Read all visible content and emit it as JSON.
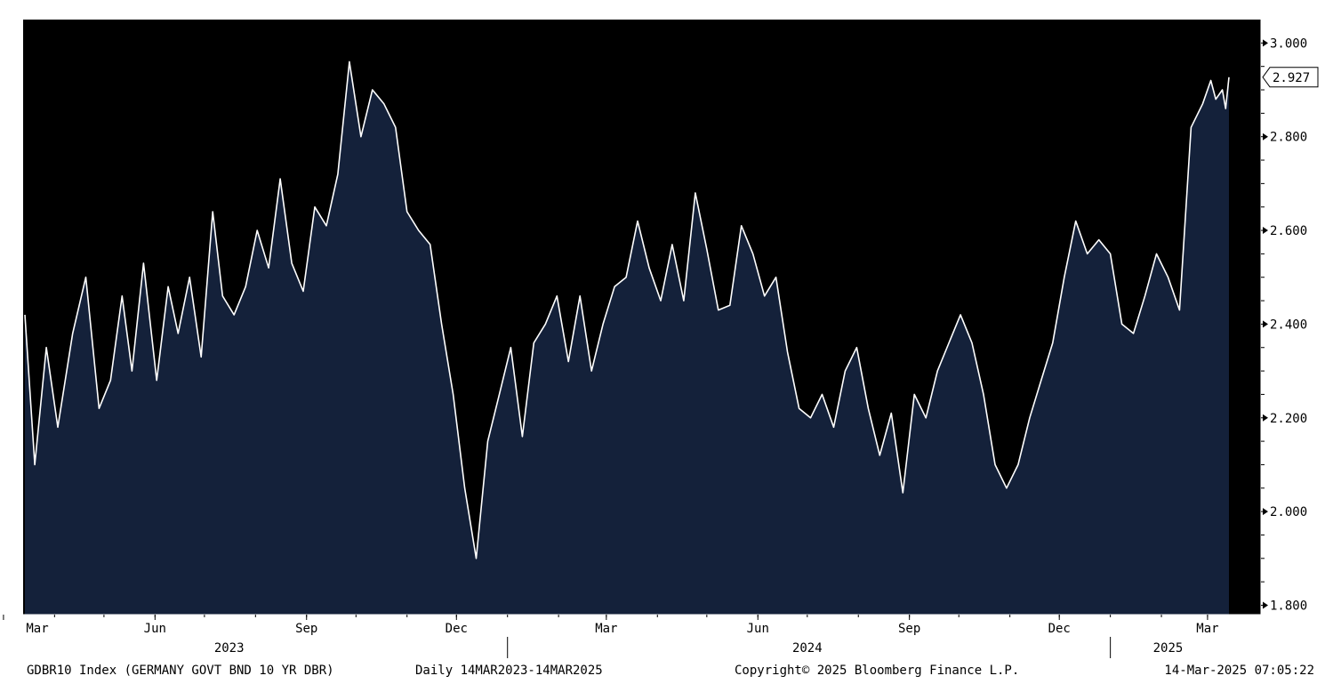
{
  "colors": {
    "background": "#000000",
    "area_fill": "#14213a",
    "line": "#ffffff",
    "axis": "#ffffff",
    "label_bg": "#ffffff",
    "label_text": "#000000"
  },
  "chart_data": {
    "type": "area",
    "title": "",
    "xlabel": "",
    "ylabel": "",
    "x_range": [
      "2023-03-14",
      "2025-03-14"
    ],
    "ylim": [
      1.78,
      3.05
    ],
    "y_ticks": [
      {
        "value": 1.8,
        "label": "1.800"
      },
      {
        "value": 2.0,
        "label": "2.000"
      },
      {
        "value": 2.2,
        "label": "2.200"
      },
      {
        "value": 2.4,
        "label": "2.400"
      },
      {
        "value": 2.6,
        "label": "2.600"
      },
      {
        "value": 2.8,
        "label": "2.800"
      },
      {
        "value": 3.0,
        "label": "3.000"
      }
    ],
    "last_value_label": "2.927",
    "last_value": 2.927,
    "month_ticks": [
      {
        "date": "2023-03-01",
        "label": "Mar"
      },
      {
        "date": "2023-06-01",
        "label": "Jun"
      },
      {
        "date": "2023-09-01",
        "label": "Sep"
      },
      {
        "date": "2023-12-01",
        "label": "Dec"
      },
      {
        "date": "2024-03-01",
        "label": "Mar"
      },
      {
        "date": "2024-06-01",
        "label": "Jun"
      },
      {
        "date": "2024-09-01",
        "label": "Sep"
      },
      {
        "date": "2024-12-01",
        "label": "Dec"
      },
      {
        "date": "2025-03-01",
        "label": "Mar"
      }
    ],
    "year_labels": [
      {
        "date": "2023-07-16",
        "label": "2023"
      },
      {
        "date": "2024-07-01",
        "label": "2024"
      },
      {
        "date": "2025-02-05",
        "label": "2025"
      }
    ],
    "year_dividers": [
      "2024-01-01",
      "2025-01-01"
    ],
    "grid": false,
    "series": [
      {
        "x": [
          "2023-03-14",
          "2023-03-20",
          "2023-03-27",
          "2023-04-03",
          "2023-04-12",
          "2023-04-20",
          "2023-04-28",
          "2023-05-05",
          "2023-05-12",
          "2023-05-18",
          "2023-05-25",
          "2023-06-02",
          "2023-06-09",
          "2023-06-15",
          "2023-06-22",
          "2023-06-29",
          "2023-07-06",
          "2023-07-12",
          "2023-07-19",
          "2023-07-26",
          "2023-08-02",
          "2023-08-09",
          "2023-08-16",
          "2023-08-23",
          "2023-08-30",
          "2023-09-06",
          "2023-09-13",
          "2023-09-20",
          "2023-09-27",
          "2023-10-04",
          "2023-10-11",
          "2023-10-18",
          "2023-10-25",
          "2023-11-01",
          "2023-11-08",
          "2023-11-15",
          "2023-11-22",
          "2023-11-29",
          "2023-12-06",
          "2023-12-13",
          "2023-12-20",
          "2023-12-27",
          "2024-01-03",
          "2024-01-10",
          "2024-01-17",
          "2024-01-24",
          "2024-01-31",
          "2024-02-07",
          "2024-02-14",
          "2024-02-21",
          "2024-02-28",
          "2024-03-06",
          "2024-03-13",
          "2024-03-20",
          "2024-03-27",
          "2024-04-03",
          "2024-04-10",
          "2024-04-17",
          "2024-04-24",
          "2024-05-01",
          "2024-05-08",
          "2024-05-15",
          "2024-05-22",
          "2024-05-29",
          "2024-06-05",
          "2024-06-12",
          "2024-06-19",
          "2024-06-26",
          "2024-07-03",
          "2024-07-10",
          "2024-07-17",
          "2024-07-24",
          "2024-07-31",
          "2024-08-07",
          "2024-08-14",
          "2024-08-21",
          "2024-08-28",
          "2024-09-04",
          "2024-09-11",
          "2024-09-18",
          "2024-09-25",
          "2024-10-02",
          "2024-10-09",
          "2024-10-16",
          "2024-10-23",
          "2024-10-30",
          "2024-11-06",
          "2024-11-13",
          "2024-11-20",
          "2024-11-27",
          "2024-12-04",
          "2024-12-11",
          "2024-12-18",
          "2024-12-25",
          "2025-01-01",
          "2025-01-08",
          "2025-01-15",
          "2025-01-22",
          "2025-01-29",
          "2025-02-05",
          "2025-02-12",
          "2025-02-19",
          "2025-02-26",
          "2025-03-03",
          "2025-03-06",
          "2025-03-10",
          "2025-03-12",
          "2025-03-14"
        ],
        "y": [
          2.42,
          2.1,
          2.35,
          2.18,
          2.38,
          2.5,
          2.22,
          2.28,
          2.46,
          2.3,
          2.53,
          2.28,
          2.48,
          2.38,
          2.5,
          2.33,
          2.64,
          2.46,
          2.42,
          2.48,
          2.6,
          2.52,
          2.71,
          2.53,
          2.47,
          2.65,
          2.61,
          2.72,
          2.96,
          2.8,
          2.9,
          2.87,
          2.82,
          2.64,
          2.6,
          2.57,
          2.4,
          2.25,
          2.05,
          1.9,
          2.15,
          2.25,
          2.35,
          2.16,
          2.36,
          2.4,
          2.46,
          2.32,
          2.46,
          2.3,
          2.4,
          2.48,
          2.5,
          2.62,
          2.52,
          2.45,
          2.57,
          2.45,
          2.68,
          2.56,
          2.43,
          2.44,
          2.61,
          2.55,
          2.46,
          2.5,
          2.34,
          2.22,
          2.2,
          2.25,
          2.18,
          2.3,
          2.35,
          2.22,
          2.12,
          2.21,
          2.04,
          2.25,
          2.2,
          2.3,
          2.36,
          2.42,
          2.36,
          2.25,
          2.1,
          2.05,
          2.1,
          2.2,
          2.28,
          2.36,
          2.5,
          2.62,
          2.55,
          2.58,
          2.55,
          2.4,
          2.38,
          2.46,
          2.55,
          2.5,
          2.43,
          2.82,
          2.87,
          2.92,
          2.88,
          2.9,
          2.86,
          2.927
        ]
      }
    ]
  },
  "footer": {
    "left": "GDBR10 Index (GERMANY GOVT BND 10 YR DBR)",
    "period": "Daily 14MAR2023-14MAR2025",
    "copyright": "Copyright© 2025 Bloomberg Finance L.P.",
    "timestamp": "14-Mar-2025 07:05:22"
  }
}
